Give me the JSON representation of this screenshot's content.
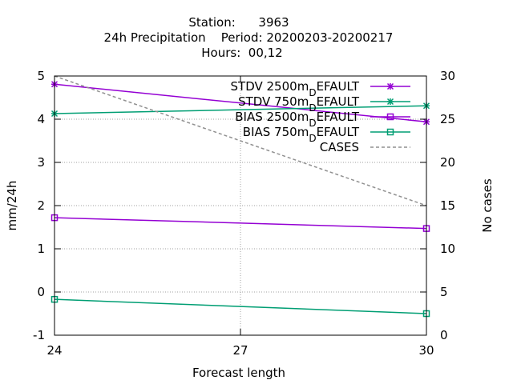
{
  "chart_data": {
    "type": "line",
    "title_lines": [
      "Station:      3963",
      "24h Precipitation    Period: 20200203-20200217",
      "Hours:  00,12"
    ],
    "xlabel": "Forecast length",
    "ylabel": "mm/24h",
    "y2label": "No cases",
    "xlim": [
      24,
      30
    ],
    "ylim": [
      -1,
      5
    ],
    "y2lim": [
      0,
      30
    ],
    "xticks": [
      "24",
      "27",
      "30"
    ],
    "xtick_values": [
      24,
      27,
      30
    ],
    "yticks": [
      "-1",
      "0",
      "1",
      "2",
      "3",
      "4",
      "5"
    ],
    "ytick_values": [
      -1,
      0,
      1,
      2,
      3,
      4,
      5
    ],
    "y2ticks": [
      "0",
      "5",
      "10",
      "15",
      "20",
      "25",
      "30"
    ],
    "y2tick_values": [
      0,
      5,
      10,
      15,
      20,
      25,
      30
    ],
    "grid": true,
    "legend_position": "top-right",
    "series": [
      {
        "name": "STDV 2500m",
        "suffix": "EFAULT",
        "sub": "D",
        "axis": "y1",
        "marker": "star",
        "color": "#9400d3",
        "dashed": false,
        "x": [
          24,
          30
        ],
        "y": [
          4.81,
          3.94
        ]
      },
      {
        "name": "STDV 750m",
        "suffix": "EFAULT",
        "sub": "D",
        "axis": "y1",
        "marker": "star",
        "color": "#009e73",
        "dashed": false,
        "x": [
          24,
          30
        ],
        "y": [
          4.13,
          4.31
        ]
      },
      {
        "name": "BIAS 2500m",
        "suffix": "EFAULT",
        "sub": "D",
        "axis": "y1",
        "marker": "square",
        "color": "#9400d3",
        "dashed": false,
        "x": [
          24,
          30
        ],
        "y": [
          1.72,
          1.47
        ]
      },
      {
        "name": "BIAS 750m",
        "suffix": "EFAULT",
        "sub": "D",
        "axis": "y1",
        "marker": "square",
        "color": "#009e73",
        "dashed": false,
        "x": [
          24,
          30
        ],
        "y": [
          -0.17,
          -0.5
        ]
      },
      {
        "name": "CASES",
        "suffix": "",
        "sub": "",
        "axis": "y2",
        "marker": "none",
        "color": "#909090",
        "dashed": true,
        "x": [
          24,
          30
        ],
        "y": [
          30,
          15
        ]
      }
    ]
  }
}
